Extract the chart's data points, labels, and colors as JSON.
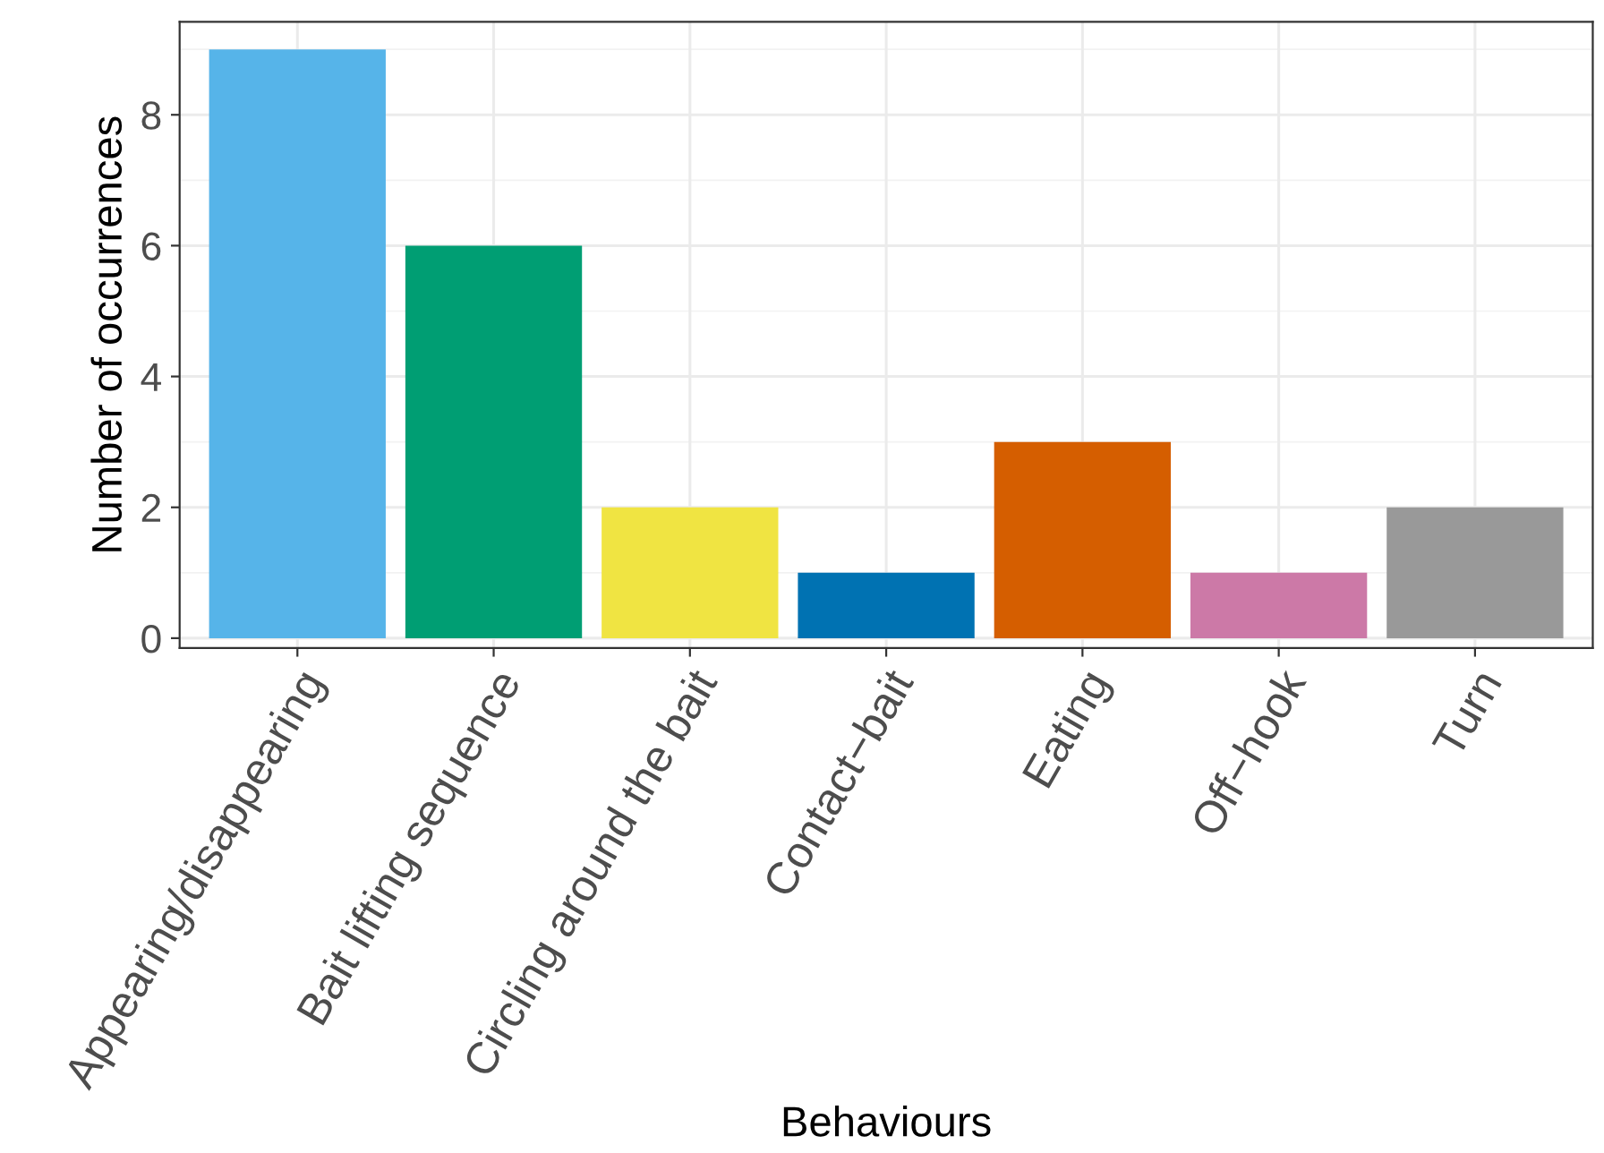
{
  "chart_data": {
    "type": "bar",
    "xlabel": "Behaviours",
    "ylabel": "Number of occurrences",
    "categories": [
      "Appearing/disappearing",
      "Bait lifting sequence",
      "Circling around the bait",
      "Contact−bait",
      "Eating",
      "Off−hook",
      "Turn"
    ],
    "values": [
      9,
      6,
      2,
      1,
      3,
      1,
      2
    ],
    "colors": [
      "#56b4e9",
      "#009e73",
      "#f0e442",
      "#0072b2",
      "#d55e00",
      "#cc79a7",
      "#999999"
    ],
    "ylim": [
      -0.15,
      9.42
    ],
    "yticks": [
      0,
      2,
      4,
      6,
      8
    ],
    "grid": true,
    "legend": false
  }
}
